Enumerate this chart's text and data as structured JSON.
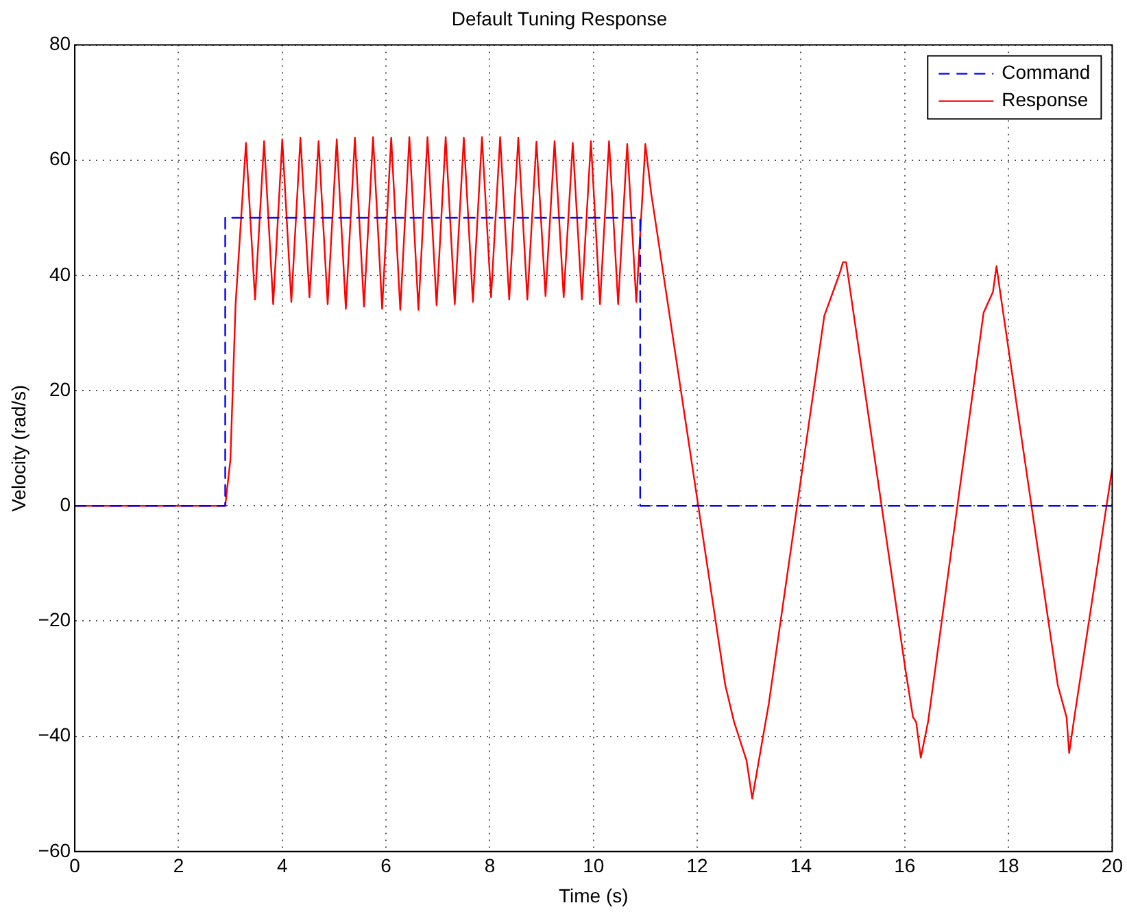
{
  "chart_data": {
    "type": "line",
    "title": "Default Tuning Response",
    "xlabel": "Time (s)",
    "ylabel": "Velocity (rad/s)",
    "xlim": [
      0,
      20
    ],
    "xticks": [
      0,
      2,
      4,
      6,
      8,
      10,
      12,
      14,
      16,
      18,
      20
    ],
    "ylim": [
      -60,
      80
    ],
    "yticks": [
      -60,
      -40,
      -20,
      0,
      20,
      40,
      60,
      80
    ],
    "grid": true,
    "legend": "top right",
    "marker": "none",
    "series": [
      {
        "name": "Command",
        "color": "#0000ff",
        "line_style": "dashed",
        "x": [
          0,
          2.9,
          2.9,
          10.9,
          10.9,
          20
        ],
        "values": [
          0,
          0,
          50,
          50,
          0,
          0
        ]
      },
      {
        "name": "Response",
        "color": "#ff0000",
        "line_style": "solid",
        "x": [
          0,
          2.9,
          3.0,
          3.1,
          3.3,
          3.475,
          3.65,
          3.825,
          4.0,
          4.175,
          4.35,
          4.525,
          4.7,
          4.875,
          5.05,
          5.225,
          5.4,
          5.575,
          5.75,
          5.925,
          6.1,
          6.275,
          6.45,
          6.625,
          6.8,
          6.975,
          7.15,
          7.325,
          7.5,
          7.675,
          7.85,
          8.025,
          8.2,
          8.375,
          8.55,
          8.725,
          8.9,
          9.075,
          9.25,
          9.425,
          9.6,
          9.775,
          9.95,
          10.125,
          10.3,
          10.475,
          10.65,
          10.825,
          11.0,
          11.11,
          12.54,
          12.71,
          12.95,
          13.06,
          13.38,
          14.45,
          14.74,
          14.81,
          14.87,
          16.02,
          16.16,
          16.22,
          16.31,
          16.45,
          17.52,
          17.7,
          17.77,
          17.84,
          18.95,
          19.12,
          19.17,
          19.27,
          20
        ],
        "values": [
          0,
          0,
          8,
          35,
          63.0,
          35.8,
          63.3,
          35.0,
          63.6,
          35.4,
          63.9,
          36.2,
          63.3,
          35.0,
          63.6,
          34.2,
          63.9,
          34.6,
          64.0,
          34.2,
          63.9,
          34.0,
          64.0,
          34.0,
          64.0,
          34.8,
          64.0,
          35.0,
          63.9,
          35.4,
          64.0,
          36.2,
          64.0,
          35.8,
          63.9,
          35.8,
          63.2,
          36.4,
          63.3,
          36.2,
          63.0,
          35.8,
          63.3,
          35.0,
          63.3,
          35.0,
          62.8,
          35.4,
          62.8,
          54.4,
          -31.1,
          -37.5,
          -44.2,
          -50.8,
          -34.3,
          33.0,
          40.2,
          42.3,
          42.3,
          -28.8,
          -36.7,
          -37.5,
          -43.7,
          -37.5,
          33.5,
          37.1,
          41.6,
          37.1,
          -31.1,
          -36.7,
          -42.9,
          -36.7,
          6.5
        ]
      }
    ]
  }
}
